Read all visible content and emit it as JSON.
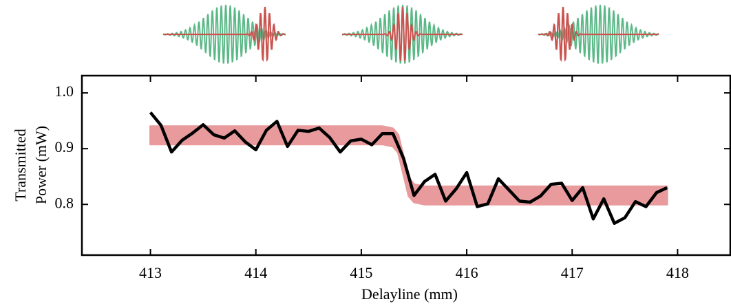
{
  "chart_data": {
    "type": "line",
    "xlabel": "Delayline (mm)",
    "ylabel": [
      "Transmitted",
      "Power (mW)"
    ],
    "xlim": [
      412.35,
      418.5
    ],
    "ylim": [
      0.709,
      1.031
    ],
    "xticks": [
      413,
      414,
      415,
      416,
      417,
      418
    ],
    "yticks": [
      0.8,
      0.9,
      {
        "value": 1,
        "label": "1.0"
      }
    ],
    "x": [
      413.0,
      413.1,
      413.2,
      413.3,
      413.4,
      413.5,
      413.6,
      413.7,
      413.8,
      413.9,
      414.0,
      414.1,
      414.2,
      414.3,
      414.4,
      414.5,
      414.6,
      414.7,
      414.8,
      414.9,
      415.0,
      415.1,
      415.2,
      415.3,
      415.4,
      415.5,
      415.6,
      415.7,
      415.8,
      415.9,
      416.0,
      416.1,
      416.2,
      416.3,
      416.4,
      416.5,
      416.6,
      416.7,
      416.8,
      416.9,
      417.0,
      417.1,
      417.2,
      417.3,
      417.4,
      417.5,
      417.6,
      417.7,
      417.8,
      417.9
    ],
    "series": [
      {
        "color": "#000000",
        "values": [
          0.965,
          0.942,
          0.894,
          0.915,
          0.928,
          0.943,
          0.925,
          0.919,
          0.932,
          0.912,
          0.898,
          0.933,
          0.949,
          0.904,
          0.933,
          0.931,
          0.937,
          0.92,
          0.894,
          0.914,
          0.917,
          0.907,
          0.927,
          0.927,
          0.883,
          0.816,
          0.841,
          0.854,
          0.806,
          0.828,
          0.857,
          0.796,
          0.801,
          0.846,
          0.826,
          0.806,
          0.804,
          0.815,
          0.836,
          0.838,
          0.807,
          0.83,
          0.774,
          0.81,
          0.766,
          0.776,
          0.805,
          0.796,
          0.821,
          0.83
        ]
      }
    ],
    "band": {
      "color": "#e89a9c",
      "x": [
        413,
        415.2,
        415.3,
        415.35,
        415.4,
        415.45,
        415.5,
        415.6,
        417.9
      ],
      "upper": [
        0.94,
        0.94,
        0.936,
        0.925,
        0.886,
        0.847,
        0.836,
        0.832,
        0.832
      ],
      "lower": [
        0.908,
        0.908,
        0.904,
        0.893,
        0.854,
        0.815,
        0.804,
        0.8,
        0.8
      ]
    }
  }
}
